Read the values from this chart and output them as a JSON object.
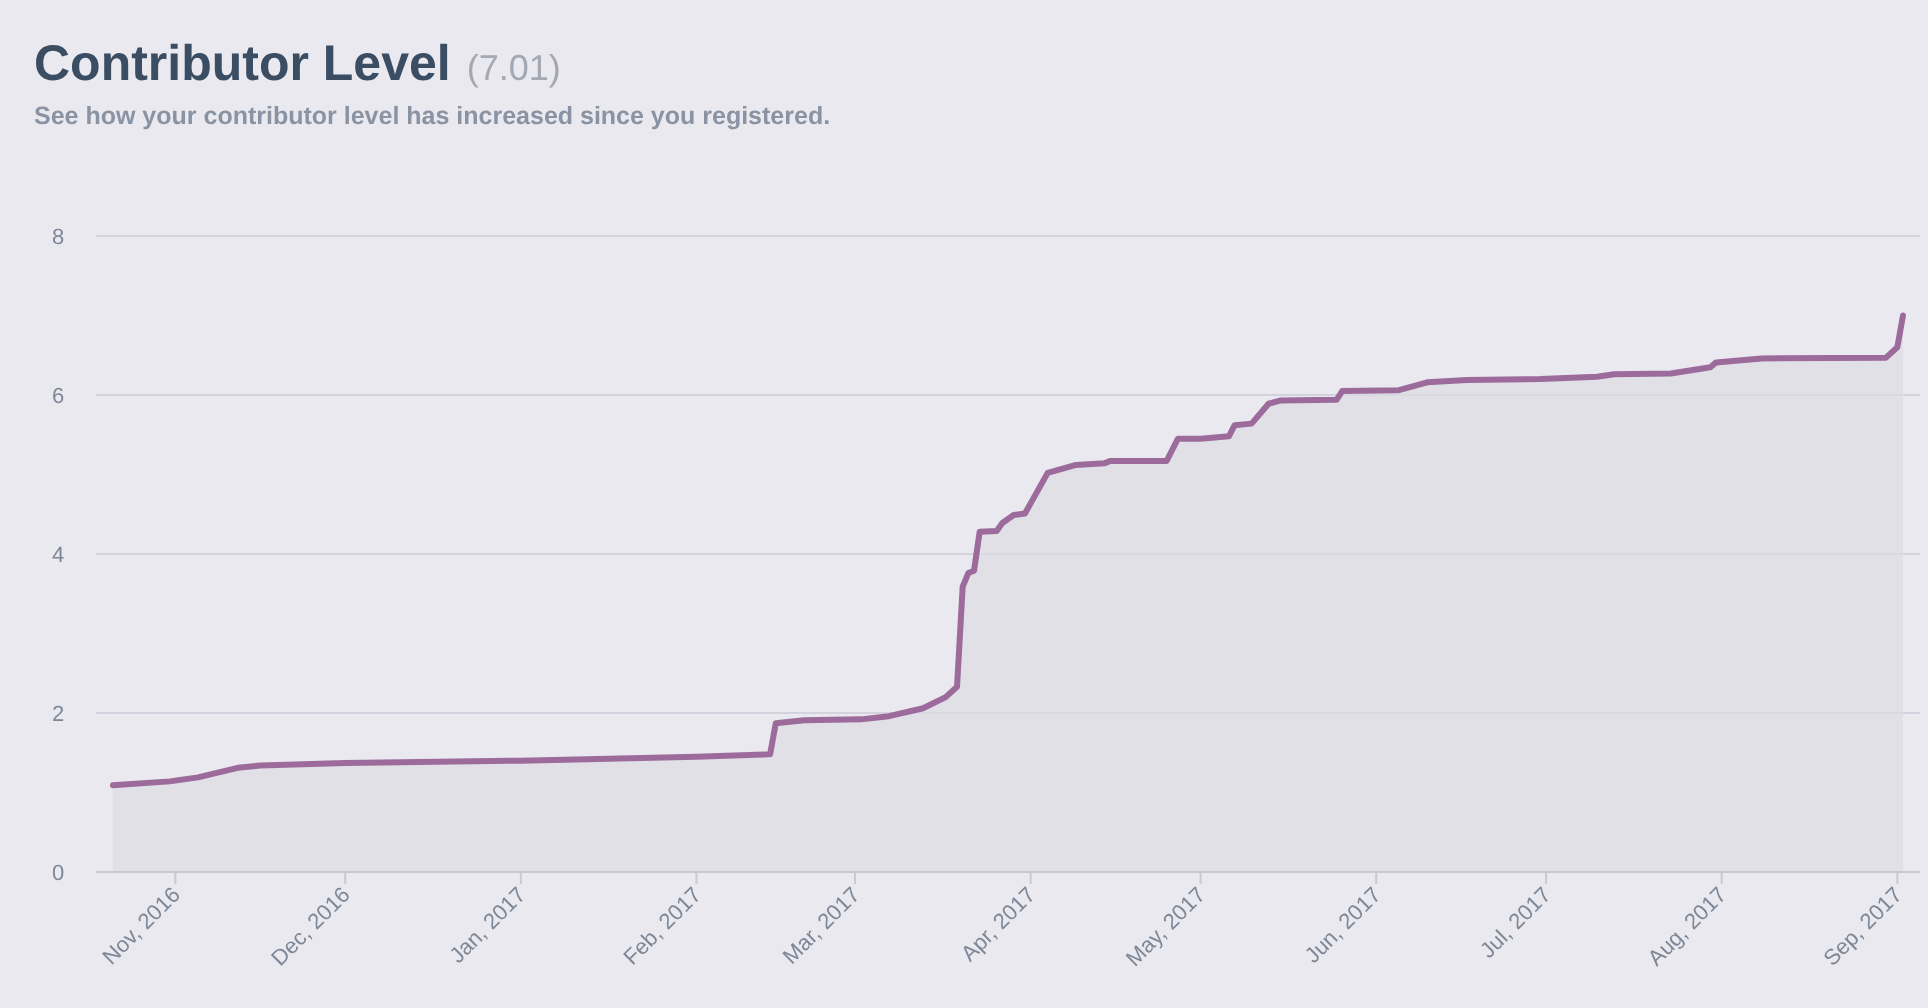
{
  "chart_data": {
    "type": "area",
    "title": "Contributor Level",
    "subtitle": "See how your contributor level has increased since you registered.",
    "annotations": [
      "(7.01)"
    ],
    "x": [
      "2016-10-21",
      "2016-10-31",
      "2016-11-05",
      "2016-11-12",
      "2016-11-16",
      "2016-12-01",
      "2017-01-01",
      "2017-02-01",
      "2017-02-14",
      "2017-02-15",
      "2017-02-20",
      "2017-03-02",
      "2017-03-07",
      "2017-03-13",
      "2017-03-17",
      "2017-03-19",
      "2017-03-20",
      "2017-03-21",
      "2017-03-22",
      "2017-03-23",
      "2017-03-26",
      "2017-03-27",
      "2017-03-29",
      "2017-03-31",
      "2017-04-04",
      "2017-04-09",
      "2017-04-14",
      "2017-04-15",
      "2017-04-25",
      "2017-04-27",
      "2017-05-01",
      "2017-05-06",
      "2017-05-07",
      "2017-05-10",
      "2017-05-13",
      "2017-05-15",
      "2017-05-25",
      "2017-05-26",
      "2017-06-05",
      "2017-06-10",
      "2017-06-17",
      "2017-06-30",
      "2017-07-10",
      "2017-07-13",
      "2017-07-23",
      "2017-07-30",
      "2017-07-31",
      "2017-08-08",
      "2017-08-30",
      "2017-09-01",
      "2017-09-02"
    ],
    "series": [
      {
        "color": "#9c6b9c",
        "values": [
          1.09,
          1.14,
          1.19,
          1.31,
          1.34,
          1.37,
          1.4,
          1.45,
          1.48,
          1.87,
          1.91,
          1.92,
          1.96,
          2.06,
          2.2,
          2.33,
          3.59,
          3.76,
          3.79,
          4.28,
          4.29,
          4.39,
          4.49,
          4.51,
          5.02,
          5.12,
          5.14,
          5.17,
          5.17,
          5.45,
          5.45,
          5.48,
          5.62,
          5.64,
          5.89,
          5.93,
          5.94,
          6.05,
          6.06,
          6.16,
          6.19,
          6.2,
          6.23,
          6.26,
          6.27,
          6.35,
          6.41,
          6.46,
          6.47,
          6.6,
          7.0
        ]
      }
    ],
    "xlim": [
      "2016-10-18",
      "2017-09-05"
    ],
    "xticks": [
      {
        "value": "2016-11-01",
        "label": "Nov, 2016"
      },
      {
        "value": "2016-12-01",
        "label": "Dec, 2016"
      },
      {
        "value": "2017-01-01",
        "label": "Jan, 2017"
      },
      {
        "value": "2017-02-01",
        "label": "Feb, 2017"
      },
      {
        "value": "2017-03-01",
        "label": "Mar, 2017"
      },
      {
        "value": "2017-04-01",
        "label": "Apr, 2017"
      },
      {
        "value": "2017-05-01",
        "label": "May, 2017"
      },
      {
        "value": "2017-06-01",
        "label": "Jun, 2017"
      },
      {
        "value": "2017-07-01",
        "label": "Jul, 2017"
      },
      {
        "value": "2017-08-01",
        "label": "Aug, 2017"
      },
      {
        "value": "2017-09-01",
        "label": "Sep, 2017"
      }
    ],
    "ylim": [
      0,
      8
    ],
    "yticks": [
      0,
      2,
      4,
      6,
      8
    ],
    "grid": "y"
  }
}
